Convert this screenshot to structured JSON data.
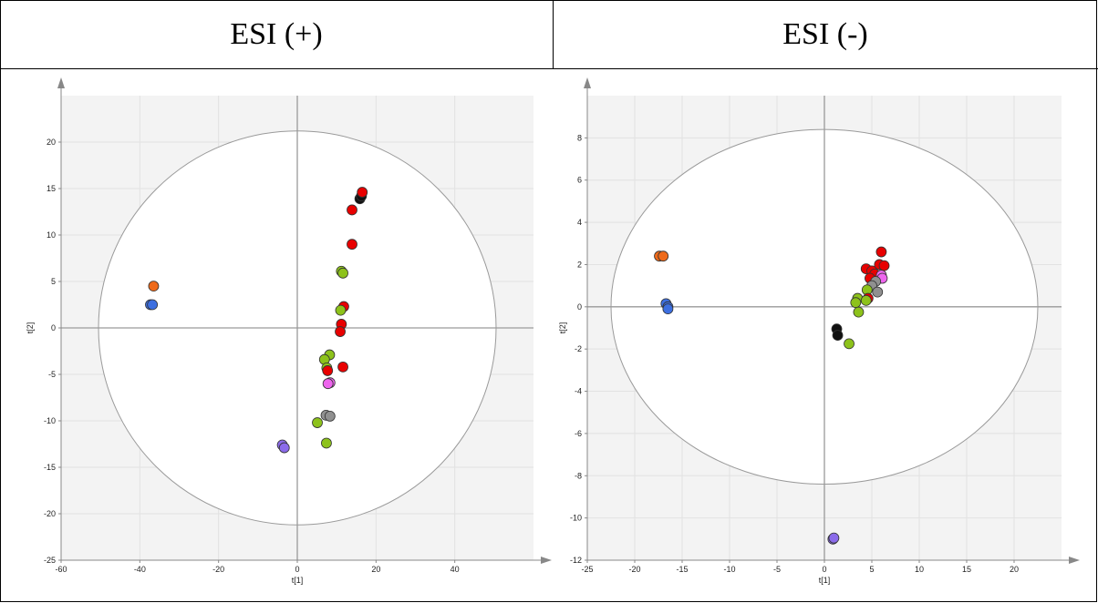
{
  "headers": {
    "left": "ESI (+)",
    "right": "ESI (-)"
  },
  "chart_data": [
    {
      "type": "scatter",
      "title": "ESI (+)",
      "xlabel": "t[1]",
      "ylabel": "t[2]",
      "xlim": [
        -60,
        60
      ],
      "ylim": [
        -25,
        25
      ],
      "xticks": [
        -60,
        -40,
        -20,
        0,
        20,
        40
      ],
      "yticks": [
        -25,
        -20,
        -15,
        -10,
        -5,
        0,
        5,
        10,
        15,
        20
      ],
      "ellipse": {
        "rx": 50.5,
        "ry": 21.2
      },
      "grid": true,
      "colors": {
        "orange": "#ee6a1a",
        "blue": "#3d6fe0",
        "black": "#111111",
        "red": "#e80000",
        "green": "#8dc21b",
        "pink": "#ee66ee",
        "gray": "#909090",
        "purple": "#8b6bea"
      },
      "points": [
        {
          "x": -36.5,
          "y": 4.5,
          "c": "orange"
        },
        {
          "x": -37.3,
          "y": 2.5,
          "c": "blue"
        },
        {
          "x": -36.8,
          "y": 2.5,
          "c": "blue"
        },
        {
          "x": 15.9,
          "y": 13.9,
          "c": "black"
        },
        {
          "x": 16.3,
          "y": 14.2,
          "c": "black"
        },
        {
          "x": 16.5,
          "y": 14.6,
          "c": "red"
        },
        {
          "x": 13.9,
          "y": 12.7,
          "c": "red"
        },
        {
          "x": 13.9,
          "y": 9.0,
          "c": "red"
        },
        {
          "x": 11.2,
          "y": 6.1,
          "c": "green"
        },
        {
          "x": 11.6,
          "y": 5.9,
          "c": "green"
        },
        {
          "x": 11.8,
          "y": 2.3,
          "c": "red"
        },
        {
          "x": 11.0,
          "y": 1.9,
          "c": "green"
        },
        {
          "x": 11.2,
          "y": 0.4,
          "c": "red"
        },
        {
          "x": 10.9,
          "y": -0.4,
          "c": "red"
        },
        {
          "x": 8.2,
          "y": -2.9,
          "c": "green"
        },
        {
          "x": 6.9,
          "y": -3.4,
          "c": "green"
        },
        {
          "x": 7.5,
          "y": -4.3,
          "c": "green"
        },
        {
          "x": 7.7,
          "y": -4.6,
          "c": "red"
        },
        {
          "x": 11.6,
          "y": -4.2,
          "c": "red"
        },
        {
          "x": 8.3,
          "y": -5.9,
          "c": "pink"
        },
        {
          "x": 7.8,
          "y": -6.0,
          "c": "pink"
        },
        {
          "x": 7.3,
          "y": -9.4,
          "c": "gray"
        },
        {
          "x": 8.3,
          "y": -9.5,
          "c": "gray"
        },
        {
          "x": 5.1,
          "y": -10.2,
          "c": "green"
        },
        {
          "x": 7.4,
          "y": -12.4,
          "c": "green"
        },
        {
          "x": -3.8,
          "y": -12.6,
          "c": "purple"
        },
        {
          "x": -3.3,
          "y": -12.9,
          "c": "purple"
        }
      ]
    },
    {
      "type": "scatter",
      "title": "ESI (-)",
      "xlabel": "t[1]",
      "ylabel": "t[2]",
      "xlim": [
        -25,
        25
      ],
      "ylim": [
        -12,
        10
      ],
      "xticks": [
        -25,
        -20,
        -15,
        -10,
        -5,
        0,
        5,
        10,
        15,
        20
      ],
      "yticks": [
        -12,
        -10,
        -8,
        -6,
        -4,
        -2,
        0,
        2,
        4,
        6,
        8
      ],
      "ellipse": {
        "rx": 22.5,
        "ry": 8.4
      },
      "grid": true,
      "colors": {
        "orange": "#ee6a1a",
        "blue": "#3d6fe0",
        "black": "#111111",
        "red": "#e80000",
        "green": "#8dc21b",
        "pink": "#ee66ee",
        "gray": "#909090",
        "purple": "#8b6bea"
      },
      "points": [
        {
          "x": -17.4,
          "y": 2.4,
          "c": "orange"
        },
        {
          "x": -17.0,
          "y": 2.4,
          "c": "orange"
        },
        {
          "x": -16.7,
          "y": 0.15,
          "c": "blue"
        },
        {
          "x": -16.5,
          "y": 0.0,
          "c": "blue"
        },
        {
          "x": -16.5,
          "y": -0.1,
          "c": "blue"
        },
        {
          "x": 6.0,
          "y": 2.6,
          "c": "red"
        },
        {
          "x": 5.8,
          "y": 2.0,
          "c": "red"
        },
        {
          "x": 6.3,
          "y": 1.95,
          "c": "red"
        },
        {
          "x": 4.4,
          "y": 1.8,
          "c": "red"
        },
        {
          "x": 5.0,
          "y": 1.7,
          "c": "red"
        },
        {
          "x": 5.3,
          "y": 1.55,
          "c": "red"
        },
        {
          "x": 6.0,
          "y": 1.5,
          "c": "pink"
        },
        {
          "x": 6.1,
          "y": 1.35,
          "c": "pink"
        },
        {
          "x": 4.8,
          "y": 1.35,
          "c": "red"
        },
        {
          "x": 5.4,
          "y": 1.2,
          "c": "gray"
        },
        {
          "x": 5.0,
          "y": 1.0,
          "c": "gray"
        },
        {
          "x": 5.6,
          "y": 0.7,
          "c": "gray"
        },
        {
          "x": 4.5,
          "y": 0.8,
          "c": "green"
        },
        {
          "x": 3.5,
          "y": 0.4,
          "c": "green"
        },
        {
          "x": 4.6,
          "y": 0.4,
          "c": "red"
        },
        {
          "x": 4.4,
          "y": 0.3,
          "c": "green"
        },
        {
          "x": 3.3,
          "y": 0.2,
          "c": "green"
        },
        {
          "x": 3.6,
          "y": -0.25,
          "c": "green"
        },
        {
          "x": 1.3,
          "y": -1.05,
          "c": "black"
        },
        {
          "x": 1.4,
          "y": -1.35,
          "c": "black"
        },
        {
          "x": 2.6,
          "y": -1.75,
          "c": "green"
        },
        {
          "x": 0.9,
          "y": -11.0,
          "c": "purple"
        },
        {
          "x": 1.0,
          "y": -10.95,
          "c": "purple"
        }
      ]
    }
  ]
}
